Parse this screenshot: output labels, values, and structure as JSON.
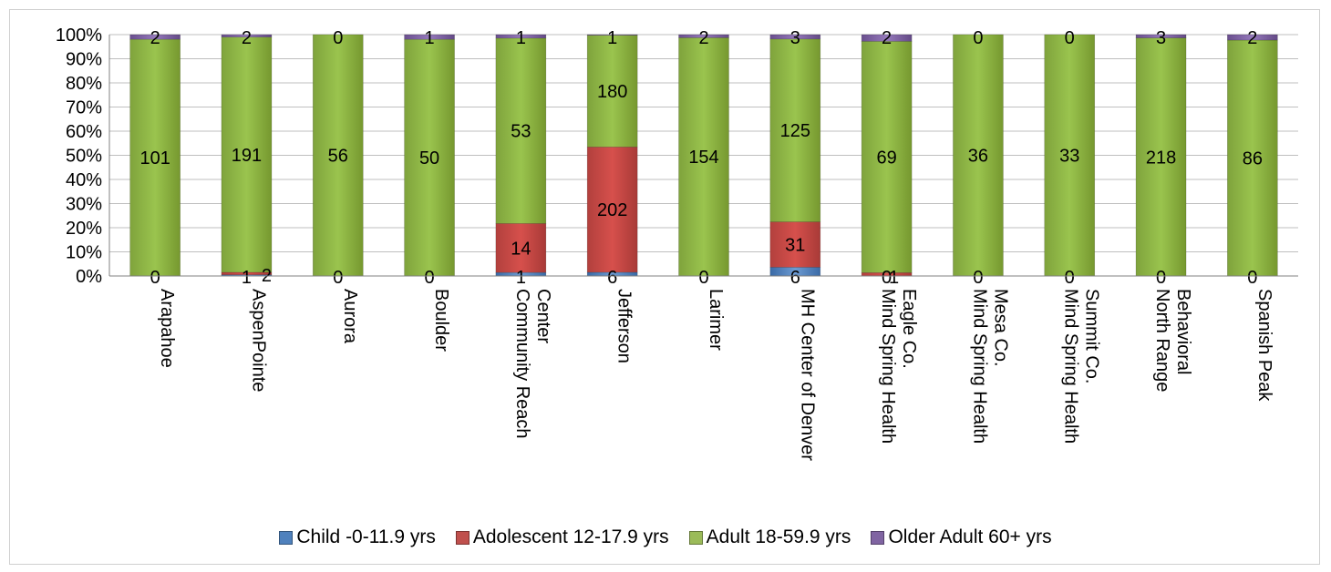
{
  "chart_data": {
    "type": "bar",
    "stacked": "percent",
    "categories": [
      "Arapahoe",
      "AspenPointe",
      "Aurora",
      "Boulder",
      "Community Reach Center",
      "Jefferson",
      "Larimer",
      "MH Center of Denver",
      "Mind Spring Health Eagle Co.",
      "Mind Spring Health Mesa Co.",
      "Mind Spring Health Summit Co.",
      "North Range Behavioral",
      "Spanish Peak"
    ],
    "category_lines": [
      [
        "Arapahoe"
      ],
      [
        "AspenPointe"
      ],
      [
        "Aurora"
      ],
      [
        "Boulder"
      ],
      [
        "Community Reach",
        "Center"
      ],
      [
        "Jefferson"
      ],
      [
        "Larimer"
      ],
      [
        "MH Center of Denver"
      ],
      [
        "Mind Spring Health",
        "Eagle Co."
      ],
      [
        "Mind Spring Health",
        "Mesa Co."
      ],
      [
        "Mind Spring Health",
        "Summit Co."
      ],
      [
        "North Range",
        "Behavioral"
      ],
      [
        "Spanish Peak"
      ]
    ],
    "series": [
      {
        "name": "Child -0-11.9 yrs",
        "color": "#4f81bd",
        "values": [
          0,
          1,
          0,
          0,
          1,
          6,
          0,
          6,
          0,
          0,
          0,
          0,
          0
        ]
      },
      {
        "name": "Adolescent 12-17.9 yrs",
        "color": "#c0504d",
        "values": [
          0,
          2,
          0,
          0,
          14,
          202,
          0,
          31,
          1,
          0,
          0,
          0,
          0
        ]
      },
      {
        "name": "Adult 18-59.9 yrs",
        "color": "#9bbb59",
        "values": [
          101,
          191,
          56,
          50,
          53,
          180,
          154,
          125,
          69,
          36,
          33,
          218,
          86
        ]
      },
      {
        "name": "Older Adult 60+ yrs",
        "color": "#8064a2",
        "values": [
          2,
          2,
          0,
          1,
          1,
          1,
          2,
          3,
          2,
          0,
          0,
          3,
          2
        ]
      }
    ],
    "y_ticks": [
      "0%",
      "10%",
      "20%",
      "30%",
      "40%",
      "50%",
      "60%",
      "70%",
      "80%",
      "90%",
      "100%"
    ],
    "ylim": [
      0,
      100
    ],
    "title": "",
    "xlabel": "",
    "ylabel": "",
    "grid": true,
    "legend_position": "bottom"
  }
}
